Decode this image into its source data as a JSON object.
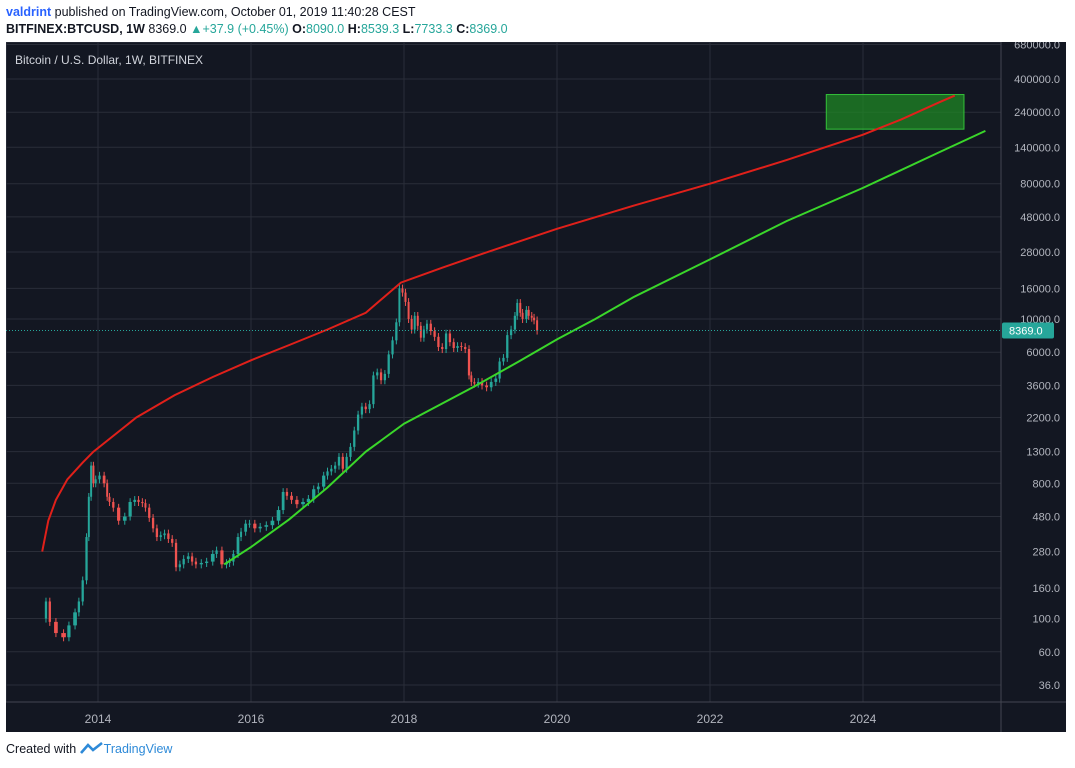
{
  "header": {
    "author": "valdrint",
    "published_text": " published on TradingView.com, October 01, 2019 11:40:28 CEST",
    "symbol": "BITFINEX:BTCUSD, 1W",
    "last": "8369.0",
    "change": "+37.9 (+0.45%)",
    "o_label": "O:",
    "o_value": "8090.0",
    "h_label": "H:",
    "h_value": "8539.3",
    "l_label": "L:",
    "l_value": "7733.3",
    "c_label": "C:",
    "c_value": "8369.0"
  },
  "footer": {
    "created_with": "Created with",
    "brand": "TradingView"
  },
  "colors": {
    "background": "#131722",
    "grid": "#2a2e39",
    "text": "#b2b5be",
    "up": "#26a69a",
    "down": "#ef5350",
    "upper_curve": "#e0201a",
    "lower_curve": "#3ad62a",
    "target_zone": "#1f8b24",
    "price_line": "#26a69a"
  },
  "chart_data": {
    "type": "candlestick",
    "title": "Bitcoin / U.S. Dollar, 1W, BITFINEX",
    "scale": "log",
    "grid": true,
    "x_ticks": [
      "2014",
      "2016",
      "2018",
      "2020",
      "2022",
      "2024"
    ],
    "y_ticks": [
      680000,
      400000,
      240000,
      140000,
      80000,
      48000,
      28000,
      16000,
      10000,
      6000,
      3600,
      2200,
      1300,
      800,
      480,
      280,
      160,
      100,
      60,
      36
    ],
    "last_price": 8369.0,
    "last_price_label": "8369.0",
    "price_series": {
      "description": "weekly close, approximate",
      "points": [
        [
          2013.27,
          100
        ],
        [
          2013.32,
          130
        ],
        [
          2013.37,
          95
        ],
        [
          2013.45,
          80
        ],
        [
          2013.55,
          75
        ],
        [
          2013.62,
          90
        ],
        [
          2013.7,
          110
        ],
        [
          2013.75,
          130
        ],
        [
          2013.8,
          180
        ],
        [
          2013.85,
          350
        ],
        [
          2013.88,
          650
        ],
        [
          2013.91,
          1050
        ],
        [
          2013.94,
          800
        ],
        [
          2013.97,
          850
        ],
        [
          2014.02,
          900
        ],
        [
          2014.08,
          800
        ],
        [
          2014.12,
          650
        ],
        [
          2014.15,
          600
        ],
        [
          2014.2,
          550
        ],
        [
          2014.27,
          450
        ],
        [
          2014.35,
          480
        ],
        [
          2014.42,
          600
        ],
        [
          2014.48,
          620
        ],
        [
          2014.53,
          600
        ],
        [
          2014.58,
          590
        ],
        [
          2014.62,
          550
        ],
        [
          2014.67,
          470
        ],
        [
          2014.72,
          400
        ],
        [
          2014.77,
          350
        ],
        [
          2014.82,
          360
        ],
        [
          2014.87,
          370
        ],
        [
          2014.92,
          340
        ],
        [
          2014.97,
          320
        ],
        [
          2015.02,
          220
        ],
        [
          2015.07,
          230
        ],
        [
          2015.12,
          250
        ],
        [
          2015.18,
          260
        ],
        [
          2015.23,
          240
        ],
        [
          2015.28,
          230
        ],
        [
          2015.35,
          235
        ],
        [
          2015.42,
          240
        ],
        [
          2015.5,
          270
        ],
        [
          2015.55,
          285
        ],
        [
          2015.62,
          230
        ],
        [
          2015.68,
          235
        ],
        [
          2015.72,
          240
        ],
        [
          2015.77,
          270
        ],
        [
          2015.83,
          350
        ],
        [
          2015.87,
          380
        ],
        [
          2015.93,
          430
        ],
        [
          2015.98,
          430
        ],
        [
          2016.05,
          400
        ],
        [
          2016.12,
          410
        ],
        [
          2016.2,
          420
        ],
        [
          2016.28,
          450
        ],
        [
          2016.36,
          530
        ],
        [
          2016.42,
          700
        ],
        [
          2016.47,
          660
        ],
        [
          2016.53,
          620
        ],
        [
          2016.6,
          580
        ],
        [
          2016.68,
          600
        ],
        [
          2016.75,
          630
        ],
        [
          2016.82,
          730
        ],
        [
          2016.88,
          760
        ],
        [
          2016.95,
          900
        ],
        [
          2017.0,
          960
        ],
        [
          2017.05,
          1000
        ],
        [
          2017.1,
          1050
        ],
        [
          2017.15,
          1200
        ],
        [
          2017.2,
          1000
        ],
        [
          2017.25,
          1200
        ],
        [
          2017.3,
          1400
        ],
        [
          2017.35,
          1800
        ],
        [
          2017.4,
          2300
        ],
        [
          2017.45,
          2600
        ],
        [
          2017.5,
          2500
        ],
        [
          2017.55,
          2700
        ],
        [
          2017.6,
          4200
        ],
        [
          2017.65,
          4400
        ],
        [
          2017.7,
          3900
        ],
        [
          2017.75,
          4300
        ],
        [
          2017.8,
          5800
        ],
        [
          2017.85,
          7200
        ],
        [
          2017.9,
          9500
        ],
        [
          2017.94,
          16000
        ],
        [
          2017.98,
          15000
        ],
        [
          2018.02,
          13000
        ],
        [
          2018.06,
          10000
        ],
        [
          2018.1,
          8500
        ],
        [
          2018.14,
          10500
        ],
        [
          2018.18,
          9000
        ],
        [
          2018.22,
          7500
        ],
        [
          2018.26,
          8500
        ],
        [
          2018.3,
          9300
        ],
        [
          2018.35,
          8300
        ],
        [
          2018.4,
          7600
        ],
        [
          2018.45,
          6500
        ],
        [
          2018.5,
          6300
        ],
        [
          2018.55,
          8000
        ],
        [
          2018.6,
          7000
        ],
        [
          2018.65,
          6400
        ],
        [
          2018.7,
          6600
        ],
        [
          2018.75,
          6500
        ],
        [
          2018.8,
          6300
        ],
        [
          2018.85,
          4200
        ],
        [
          2018.88,
          3800
        ],
        [
          2018.92,
          3700
        ],
        [
          2018.97,
          3800
        ],
        [
          2019.02,
          3600
        ],
        [
          2019.08,
          3500
        ],
        [
          2019.14,
          3800
        ],
        [
          2019.2,
          4000
        ],
        [
          2019.25,
          5200
        ],
        [
          2019.3,
          5500
        ],
        [
          2019.35,
          7800
        ],
        [
          2019.4,
          8500
        ],
        [
          2019.45,
          10500
        ],
        [
          2019.48,
          12800
        ],
        [
          2019.52,
          11000
        ],
        [
          2019.55,
          10000
        ],
        [
          2019.6,
          11500
        ],
        [
          2019.63,
          10500
        ],
        [
          2019.67,
          10200
        ],
        [
          2019.7,
          9800
        ],
        [
          2019.74,
          8369
        ]
      ]
    },
    "upper_curve": {
      "points": [
        [
          2013.27,
          280
        ],
        [
          2013.35,
          450
        ],
        [
          2013.45,
          620
        ],
        [
          2013.6,
          850
        ],
        [
          2013.8,
          1100
        ],
        [
          2013.94,
          1300
        ],
        [
          2014.5,
          2200
        ],
        [
          2015.0,
          3100
        ],
        [
          2015.5,
          4100
        ],
        [
          2016.0,
          5300
        ],
        [
          2016.5,
          6700
        ],
        [
          2017.0,
          8500
        ],
        [
          2017.5,
          11000
        ],
        [
          2017.96,
          17500
        ],
        [
          2018.5,
          22000
        ],
        [
          2019.0,
          27000
        ],
        [
          2020.0,
          40000
        ],
        [
          2021.0,
          57000
        ],
        [
          2022.0,
          80000
        ],
        [
          2023.0,
          115000
        ],
        [
          2024.0,
          170000
        ],
        [
          2024.5,
          215000
        ],
        [
          2025.0,
          280000
        ],
        [
          2025.2,
          310000
        ]
      ]
    },
    "lower_curve": {
      "points": [
        [
          2015.65,
          230
        ],
        [
          2016.0,
          300
        ],
        [
          2016.5,
          460
        ],
        [
          2017.0,
          750
        ],
        [
          2017.5,
          1300
        ],
        [
          2018.0,
          2000
        ],
        [
          2018.9,
          3500
        ],
        [
          2019.5,
          5200
        ],
        [
          2020.0,
          7300
        ],
        [
          2020.5,
          10000
        ],
        [
          2021.0,
          14000
        ],
        [
          2022.0,
          25000
        ],
        [
          2023.0,
          45000
        ],
        [
          2024.0,
          75000
        ],
        [
          2025.0,
          130000
        ],
        [
          2025.6,
          180000
        ]
      ]
    },
    "target_zone": {
      "x0": 2023.52,
      "x1": 2025.32,
      "y0": 185000,
      "y1": 315000
    }
  }
}
